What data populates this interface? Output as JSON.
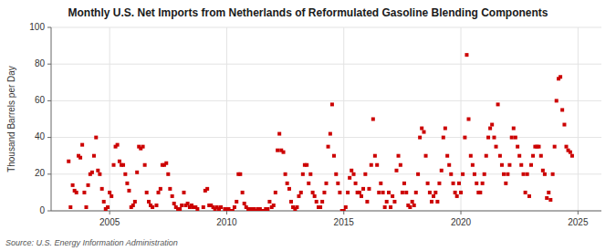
{
  "chart_data": {
    "type": "scatter",
    "title": "Monthly U.S. Net Imports from Netherlands of Reformulated Gasoline Blending Components",
    "ylabel": "Thousand Barrels per Day",
    "source": "Source: U.S. Energy Information Administration",
    "color": "#cc0000",
    "marker": "square",
    "grid": true,
    "xlim": [
      2002.5,
      2026.0
    ],
    "xticks": [
      2005,
      2010,
      2015,
      2020,
      2025
    ],
    "ylim": [
      0,
      100
    ],
    "yticks": [
      0,
      20,
      40,
      60,
      80,
      100
    ],
    "x": [
      2003.25,
      2003.33,
      2003.42,
      2003.5,
      2003.58,
      2003.67,
      2003.75,
      2003.83,
      2003.92,
      2004.0,
      2004.08,
      2004.17,
      2004.25,
      2004.33,
      2004.42,
      2004.5,
      2004.58,
      2004.67,
      2004.75,
      2004.83,
      2004.92,
      2005.0,
      2005.08,
      2005.17,
      2005.25,
      2005.33,
      2005.42,
      2005.5,
      2005.58,
      2005.67,
      2005.75,
      2005.83,
      2005.92,
      2006.0,
      2006.08,
      2006.17,
      2006.25,
      2006.33,
      2006.42,
      2006.5,
      2006.58,
      2006.67,
      2006.75,
      2006.83,
      2007.0,
      2007.08,
      2007.17,
      2007.25,
      2007.33,
      2007.42,
      2007.5,
      2007.58,
      2007.67,
      2007.75,
      2007.83,
      2007.92,
      2008.0,
      2008.08,
      2008.17,
      2008.25,
      2008.33,
      2008.42,
      2008.5,
      2008.58,
      2008.67,
      2008.75,
      2009.0,
      2009.08,
      2009.17,
      2009.25,
      2009.33,
      2009.42,
      2009.5,
      2009.58,
      2009.67,
      2009.75,
      2009.92,
      2010.0,
      2010.08,
      2010.17,
      2010.25,
      2010.33,
      2010.42,
      2010.5,
      2010.58,
      2010.67,
      2010.75,
      2010.83,
      2010.92,
      2011.0,
      2011.08,
      2011.17,
      2011.25,
      2011.33,
      2011.42,
      2011.5,
      2011.58,
      2011.67,
      2011.75,
      2011.83,
      2011.92,
      2012.0,
      2012.08,
      2012.17,
      2012.25,
      2012.33,
      2012.42,
      2012.5,
      2012.58,
      2012.67,
      2012.75,
      2012.83,
      2012.92,
      2013.0,
      2013.08,
      2013.17,
      2013.25,
      2013.33,
      2013.42,
      2013.5,
      2013.58,
      2013.67,
      2013.75,
      2013.83,
      2013.92,
      2014.0,
      2014.08,
      2014.17,
      2014.25,
      2014.33,
      2014.42,
      2014.5,
      2014.58,
      2014.67,
      2014.75,
      2014.83,
      2014.92,
      2015.0,
      2015.08,
      2015.17,
      2015.25,
      2015.33,
      2015.42,
      2015.5,
      2015.58,
      2015.67,
      2015.75,
      2015.83,
      2015.92,
      2016.0,
      2016.08,
      2016.17,
      2016.25,
      2016.33,
      2016.42,
      2016.5,
      2016.58,
      2016.67,
      2016.75,
      2016.83,
      2016.92,
      2017.0,
      2017.08,
      2017.17,
      2017.25,
      2017.33,
      2017.42,
      2017.5,
      2017.58,
      2017.67,
      2017.75,
      2017.83,
      2017.92,
      2018.0,
      2018.08,
      2018.17,
      2018.25,
      2018.33,
      2018.42,
      2018.5,
      2018.58,
      2018.67,
      2018.75,
      2018.83,
      2018.92,
      2019.0,
      2019.08,
      2019.17,
      2019.25,
      2019.33,
      2019.42,
      2019.5,
      2019.58,
      2019.67,
      2019.75,
      2019.83,
      2019.92,
      2020.0,
      2020.08,
      2020.17,
      2020.25,
      2020.33,
      2020.42,
      2020.5,
      2020.58,
      2020.67,
      2020.75,
      2020.83,
      2020.92,
      2021.0,
      2021.08,
      2021.17,
      2021.25,
      2021.33,
      2021.42,
      2021.5,
      2021.58,
      2021.67,
      2021.75,
      2021.83,
      2021.92,
      2022.0,
      2022.08,
      2022.17,
      2022.25,
      2022.33,
      2022.42,
      2022.5,
      2022.58,
      2022.67,
      2022.75,
      2022.83,
      2022.92,
      2023.0,
      2023.08,
      2023.17,
      2023.25,
      2023.33,
      2023.42,
      2023.5,
      2023.58,
      2023.67,
      2023.75,
      2023.83,
      2023.92,
      2024.0,
      2024.08,
      2024.17,
      2024.25,
      2024.33,
      2024.42,
      2024.5,
      2024.58,
      2024.67,
      2024.75
    ],
    "values": [
      27,
      2,
      14,
      11,
      10,
      30,
      29,
      36,
      10,
      2,
      14,
      20,
      21,
      30,
      40,
      22,
      20,
      12,
      5,
      1,
      2,
      10,
      8,
      25,
      35,
      36,
      27,
      25,
      25,
      20,
      15,
      11,
      2,
      3,
      5,
      21,
      35,
      34,
      35,
      25,
      10,
      5,
      3,
      2,
      3,
      10,
      12,
      25,
      25,
      26,
      20,
      12,
      8,
      4,
      2,
      1,
      1,
      3,
      10,
      3,
      4,
      2,
      3,
      2,
      2,
      1,
      2,
      11,
      12,
      3,
      3,
      2,
      1,
      2,
      1,
      2,
      1,
      1,
      1,
      0,
      0,
      2,
      5,
      20,
      20,
      10,
      4,
      2,
      1,
      1,
      1,
      1,
      0,
      1,
      1,
      0,
      0,
      1,
      1,
      5,
      2,
      3,
      10,
      33,
      42,
      33,
      32,
      20,
      15,
      12,
      5,
      2,
      1,
      2,
      8,
      10,
      20,
      25,
      25,
      15,
      20,
      10,
      8,
      5,
      2,
      2,
      5,
      10,
      15,
      35,
      42,
      58,
      30,
      20,
      15,
      10,
      0,
      0,
      2,
      10,
      18,
      22,
      20,
      15,
      10,
      10,
      8,
      12,
      20,
      5,
      12,
      25,
      50,
      30,
      25,
      10,
      15,
      10,
      2,
      5,
      10,
      2,
      8,
      5,
      22,
      30,
      25,
      10,
      15,
      10,
      3,
      2,
      5,
      3,
      10,
      20,
      40,
      45,
      43,
      30,
      15,
      10,
      5,
      8,
      10,
      5,
      15,
      22,
      40,
      45,
      30,
      25,
      20,
      15,
      10,
      8,
      15,
      10,
      20,
      40,
      85,
      50,
      30,
      25,
      20,
      15,
      10,
      10,
      15,
      20,
      30,
      40,
      45,
      47,
      40,
      35,
      58,
      30,
      25,
      20,
      15,
      20,
      25,
      40,
      45,
      40,
      35,
      30,
      25,
      20,
      10,
      20,
      8,
      25,
      30,
      35,
      35,
      35,
      30,
      22,
      20,
      7,
      10,
      6,
      20,
      35,
      60,
      72,
      73,
      55,
      47,
      35,
      33,
      32,
      30
    ]
  }
}
